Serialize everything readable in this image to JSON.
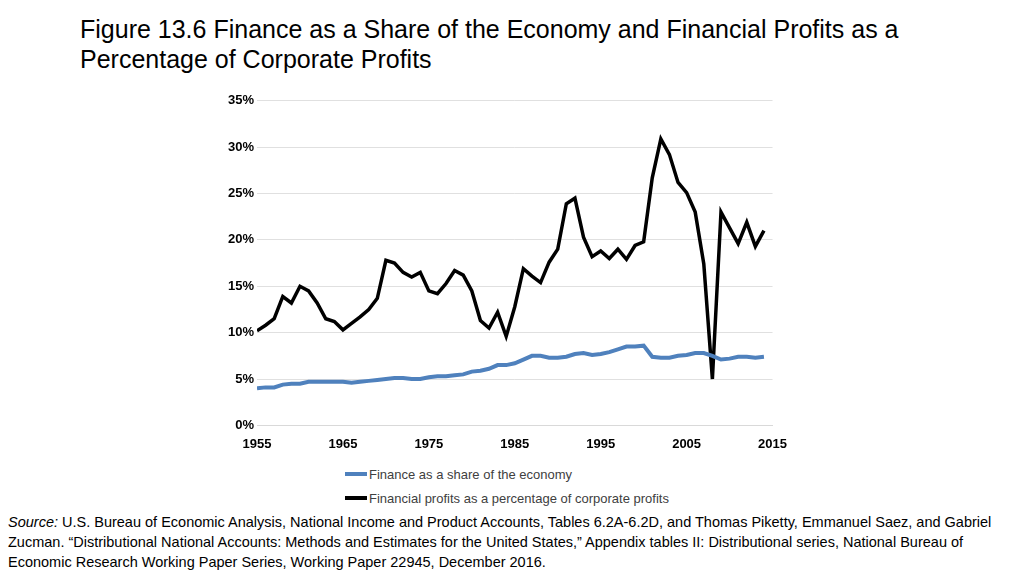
{
  "chart_data": {
    "type": "line",
    "title": "Figure 13.6 Finance as a Share of the Economy and Financial Profits as a Percentage of Corporate Profits",
    "source_label": "Source:",
    "source": "U.S. Bureau of Economic Analysis, National Income and Product Accounts, Tables 6.2A-6.2D, and Thomas Piketty, Emmanuel Saez, and Gabriel Zucman. “Distributional National Accounts: Methods and Estimates for the United States,” Appendix tables II: Distributional series, National Bureau of Economic Research Working Paper Series, Working Paper 22945, December 2016.",
    "x": [
      1955,
      1956,
      1957,
      1958,
      1959,
      1960,
      1961,
      1962,
      1963,
      1964,
      1965,
      1966,
      1967,
      1968,
      1969,
      1970,
      1971,
      1972,
      1973,
      1974,
      1975,
      1976,
      1977,
      1978,
      1979,
      1980,
      1981,
      1982,
      1983,
      1984,
      1985,
      1986,
      1987,
      1988,
      1989,
      1990,
      1991,
      1992,
      1993,
      1994,
      1995,
      1996,
      1997,
      1998,
      1999,
      2000,
      2001,
      2002,
      2003,
      2004,
      2005,
      2006,
      2007,
      2008,
      2009,
      2010,
      2011,
      2012,
      2013,
      2014
    ],
    "series": [
      {
        "name": "Finance as a share of the economy",
        "color": "#4f81bd",
        "values": [
          4.0,
          4.1,
          4.1,
          4.4,
          4.5,
          4.5,
          4.7,
          4.7,
          4.7,
          4.7,
          4.7,
          4.6,
          4.7,
          4.8,
          4.9,
          5.0,
          5.1,
          5.1,
          5.0,
          5.0,
          5.2,
          5.3,
          5.3,
          5.4,
          5.5,
          5.8,
          5.9,
          6.1,
          6.5,
          6.5,
          6.7,
          7.1,
          7.5,
          7.5,
          7.3,
          7.3,
          7.4,
          7.7,
          7.8,
          7.6,
          7.7,
          7.9,
          8.2,
          8.5,
          8.5,
          8.6,
          7.4,
          7.3,
          7.3,
          7.5,
          7.6,
          7.8,
          7.8,
          7.5,
          7.1,
          7.2,
          7.4,
          7.4,
          7.3,
          7.4
        ]
      },
      {
        "name": "Financial profits as a percentage of corporate profits",
        "color": "#000000",
        "values": [
          10.2,
          10.8,
          11.5,
          13.9,
          13.2,
          15.0,
          14.5,
          13.2,
          11.5,
          11.2,
          10.3,
          11.0,
          11.7,
          12.5,
          13.7,
          17.8,
          17.5,
          16.5,
          16.0,
          16.5,
          14.5,
          14.2,
          15.3,
          16.7,
          16.2,
          14.5,
          11.3,
          10.5,
          12.2,
          9.6,
          12.8,
          16.9,
          16.1,
          15.4,
          17.6,
          19.0,
          23.9,
          24.5,
          20.3,
          18.2,
          18.8,
          18.0,
          19.0,
          17.9,
          19.4,
          19.8,
          26.7,
          30.9,
          29.2,
          26.2,
          25.1,
          23.0,
          17.4,
          5.0,
          23.0,
          21.3,
          19.6,
          21.9,
          19.3,
          21.0
        ]
      }
    ],
    "xlim": [
      1955,
      2015
    ],
    "xticks": [
      1955,
      1965,
      1975,
      1985,
      1995,
      2005,
      2015
    ],
    "ylim": [
      0,
      35
    ],
    "yticks": [
      {
        "value": 0,
        "label": "0%"
      },
      {
        "value": 5,
        "label": "5%"
      },
      {
        "value": 10,
        "label": "10%"
      },
      {
        "value": 15,
        "label": "15%"
      },
      {
        "value": 20,
        "label": "20%"
      },
      {
        "value": 25,
        "label": "25%"
      },
      {
        "value": 30,
        "label": "30%"
      },
      {
        "value": 35,
        "label": "35%"
      }
    ],
    "grid": true,
    "legend": "bottom"
  }
}
